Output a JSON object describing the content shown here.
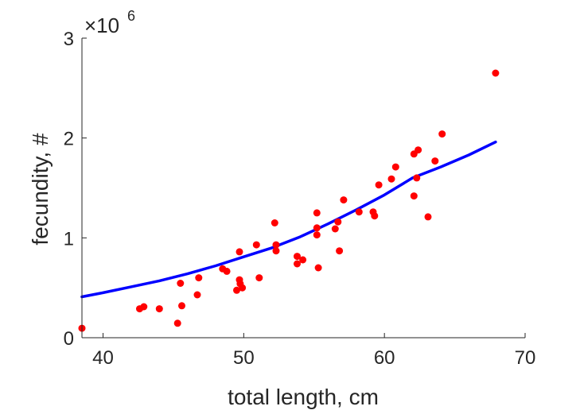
{
  "chart_data": {
    "type": "scatter",
    "xlabel": "total length, cm",
    "ylabel": "fecundity, #",
    "y_exponent_base": "×10",
    "y_exponent_power": "6",
    "xlim": [
      38.5,
      70
    ],
    "ylim": [
      0,
      3000000
    ],
    "x_ticks": [
      40,
      50,
      60,
      70
    ],
    "y_ticks": [
      0,
      1000000,
      2000000,
      3000000
    ],
    "y_tick_labels": [
      "0",
      "1",
      "2",
      "3"
    ],
    "grid": false,
    "colors": {
      "points": "#ff0000",
      "fit": "#0000ff",
      "axis": "#262626"
    },
    "series": [
      {
        "type": "scatter",
        "points": [
          [
            38.5,
            95000
          ],
          [
            42.6,
            290000
          ],
          [
            42.9,
            310000
          ],
          [
            44.0,
            290000
          ],
          [
            45.3,
            145000
          ],
          [
            45.5,
            545000
          ],
          [
            45.6,
            320000
          ],
          [
            46.7,
            430000
          ],
          [
            46.8,
            600000
          ],
          [
            48.5,
            690000
          ],
          [
            48.8,
            665000
          ],
          [
            49.5,
            475000
          ],
          [
            49.7,
            580000
          ],
          [
            49.7,
            860000
          ],
          [
            49.75,
            540000
          ],
          [
            49.9,
            500000
          ],
          [
            50.9,
            930000
          ],
          [
            51.1,
            600000
          ],
          [
            52.2,
            1150000
          ],
          [
            52.3,
            930000
          ],
          [
            52.3,
            870000
          ],
          [
            53.8,
            740000
          ],
          [
            53.8,
            815000
          ],
          [
            54.2,
            780000
          ],
          [
            55.2,
            1250000
          ],
          [
            55.2,
            1100000
          ],
          [
            55.2,
            1030000
          ],
          [
            55.3,
            700000
          ],
          [
            56.5,
            1090000
          ],
          [
            56.7,
            1160000
          ],
          [
            56.8,
            870000
          ],
          [
            57.1,
            1380000
          ],
          [
            58.2,
            1260000
          ],
          [
            59.2,
            1260000
          ],
          [
            59.3,
            1220000
          ],
          [
            59.6,
            1530000
          ],
          [
            60.5,
            1590000
          ],
          [
            60.8,
            1710000
          ],
          [
            62.1,
            1840000
          ],
          [
            62.1,
            1420000
          ],
          [
            62.3,
            1600000
          ],
          [
            62.4,
            1880000
          ],
          [
            63.1,
            1210000
          ],
          [
            63.6,
            1770000
          ],
          [
            64.1,
            2040000
          ],
          [
            67.9,
            2650000
          ]
        ]
      },
      {
        "type": "line",
        "points": [
          [
            38.5,
            410000
          ],
          [
            40,
            450000
          ],
          [
            42,
            510000
          ],
          [
            44,
            570000
          ],
          [
            46,
            640000
          ],
          [
            48,
            720000
          ],
          [
            50,
            810000
          ],
          [
            52,
            900000
          ],
          [
            54,
            1010000
          ],
          [
            56,
            1140000
          ],
          [
            58,
            1280000
          ],
          [
            60,
            1430000
          ],
          [
            62,
            1600000
          ],
          [
            64,
            1710000
          ],
          [
            66,
            1830000
          ],
          [
            67.9,
            1960000
          ]
        ]
      }
    ]
  }
}
